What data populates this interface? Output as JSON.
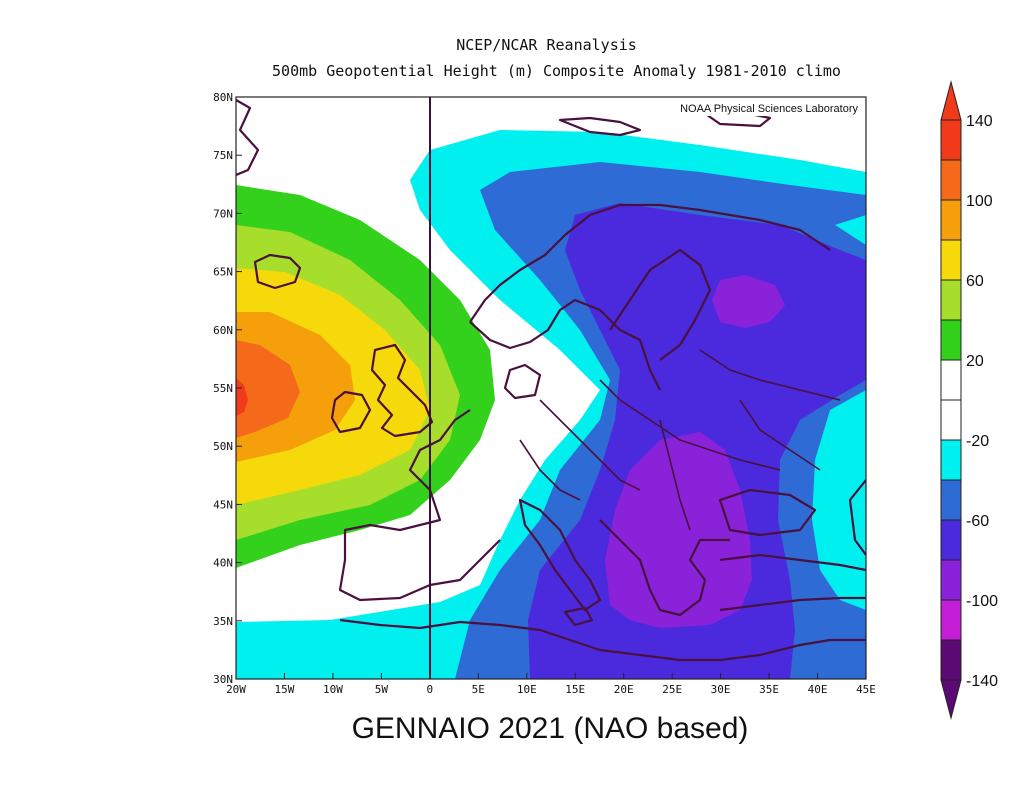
{
  "header": {
    "title_line1": "NCEP/NCAR Reanalysis",
    "title_line2": "500mb Geopotential Height (m) Composite Anomaly 1981-2010 climo"
  },
  "map": {
    "credit": "NOAA Physical Sciences Laboratory",
    "lon_labels": [
      "20W",
      "15W",
      "10W",
      "5W",
      "0",
      "5E",
      "10E",
      "15E",
      "20E",
      "25E",
      "30E",
      "35E",
      "40E",
      "45E"
    ],
    "lat_labels": [
      "80N",
      "75N",
      "70N",
      "65N",
      "60N",
      "55N",
      "50N",
      "45N",
      "40N",
      "35N",
      "30N"
    ],
    "lon_range": [
      -20,
      45
    ],
    "lat_range": [
      30,
      80
    ],
    "colors": {
      "c_n140": "#5b0a73",
      "c_n100": "#c41fd6",
      "c_n80": "#8a22d9",
      "c_n60": "#4a2adc",
      "c_n40": "#2f6bd4",
      "c_n20": "#00f0f0",
      "c_0": "#ffffff",
      "c_20": "#33d11c",
      "c_40": "#a6de2b",
      "c_60": "#f5d90a",
      "c_80": "#f5a00a",
      "c_100": "#f56a1a",
      "c_140": "#f03a1a"
    }
  },
  "colorbar": {
    "labels": [
      "140",
      "100",
      "60",
      "20",
      "-20",
      "-60",
      "-100",
      "-140"
    ]
  },
  "caption": "GENNAIO 2021 (NAO based)"
}
